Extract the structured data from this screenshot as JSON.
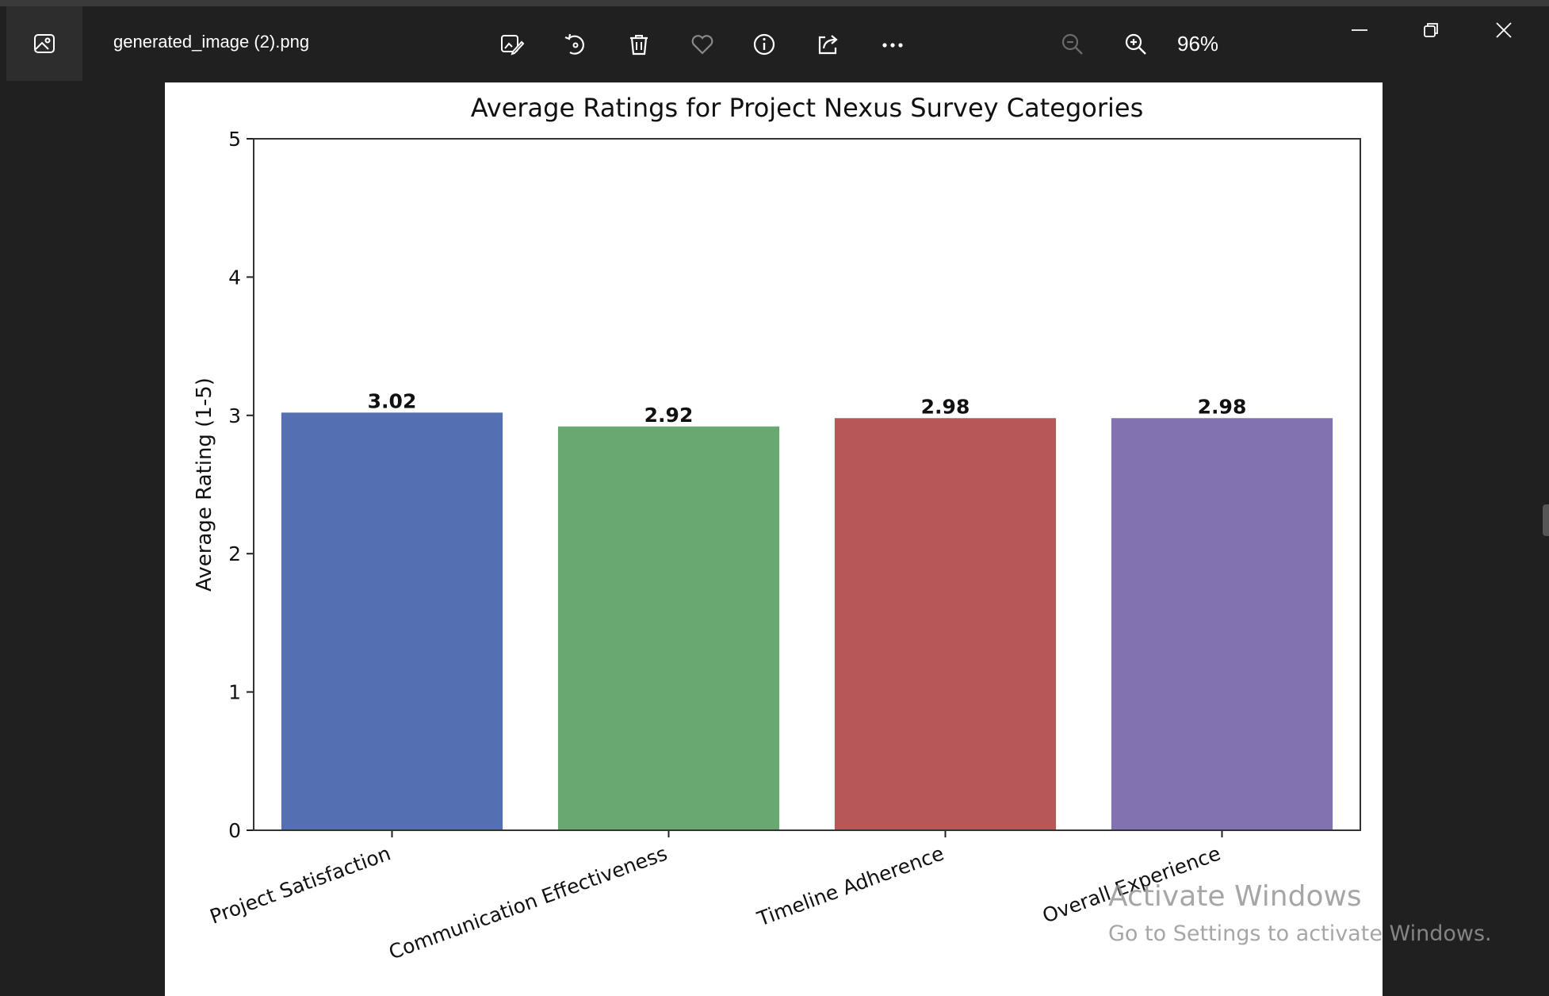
{
  "window": {
    "file_name": "generated_image (2).png",
    "zoom_level": "96%"
  },
  "toolbar": {
    "icons": [
      "edit-image-icon",
      "rotate-icon",
      "delete-icon",
      "favorite-icon",
      "info-icon",
      "share-icon",
      "more-icon",
      "zoom-out-icon",
      "zoom-in-icon"
    ]
  },
  "window_controls": [
    "minimize-icon",
    "restore-icon",
    "close-icon"
  ],
  "watermark": {
    "title": "Activate Windows",
    "subtitle": "Go to Settings to activate Windows."
  },
  "colors": {
    "bar_blue": "#5470b2",
    "bar_green": "#6aa872",
    "bar_red": "#b85757",
    "bar_purple": "#8273b0"
  },
  "chart_data": {
    "type": "bar",
    "title": "Average Ratings for Project Nexus Survey Categories",
    "xlabel": "",
    "ylabel": "Average Rating (1-5)",
    "ylim": [
      0,
      5
    ],
    "yticks": [
      "0",
      "1",
      "2",
      "3",
      "4",
      "5"
    ],
    "categories": [
      "Project Satisfaction",
      "Communication Effectiveness",
      "Timeline Adherence",
      "Overall Experience"
    ],
    "values": [
      3.02,
      2.92,
      2.98,
      2.98
    ],
    "value_labels": [
      "3.02",
      "2.92",
      "2.98",
      "2.98"
    ],
    "colors": [
      "#5470b2",
      "#6aa872",
      "#b85757",
      "#8273b0"
    ],
    "grid": false,
    "legend": "none"
  }
}
